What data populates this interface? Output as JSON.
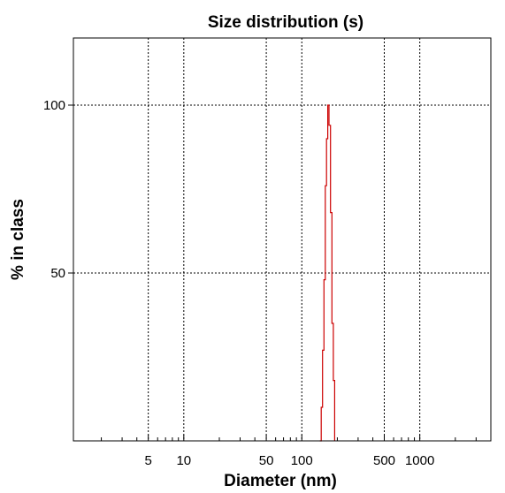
{
  "chart_data": {
    "type": "line",
    "title": "Size distribution (s)",
    "xlabel": "Diameter (nm)",
    "ylabel": "% in class",
    "x_scale": "log",
    "xlim": [
      1.16,
      4000
    ],
    "ylim": [
      0,
      120
    ],
    "x_ticks": [
      5,
      10,
      50,
      100,
      500,
      1000
    ],
    "x_tick_labels": [
      "5",
      "10",
      "50",
      "100",
      "500",
      "1000"
    ],
    "x_grid": [
      5,
      10,
      50,
      100,
      500,
      1000
    ],
    "y_ticks": [
      50,
      100
    ],
    "y_tick_labels": [
      "50",
      "100"
    ],
    "y_grid": [
      50,
      100
    ],
    "grid": true,
    "series": [
      {
        "color": "#cc0000",
        "style": "histogram-step",
        "x": [
          142,
          146,
          150,
          154,
          158,
          162,
          166,
          170,
          175,
          180,
          185,
          190
        ],
        "y": [
          0,
          10,
          27,
          48,
          76,
          90,
          100,
          94,
          68,
          35,
          18,
          0
        ]
      }
    ]
  }
}
